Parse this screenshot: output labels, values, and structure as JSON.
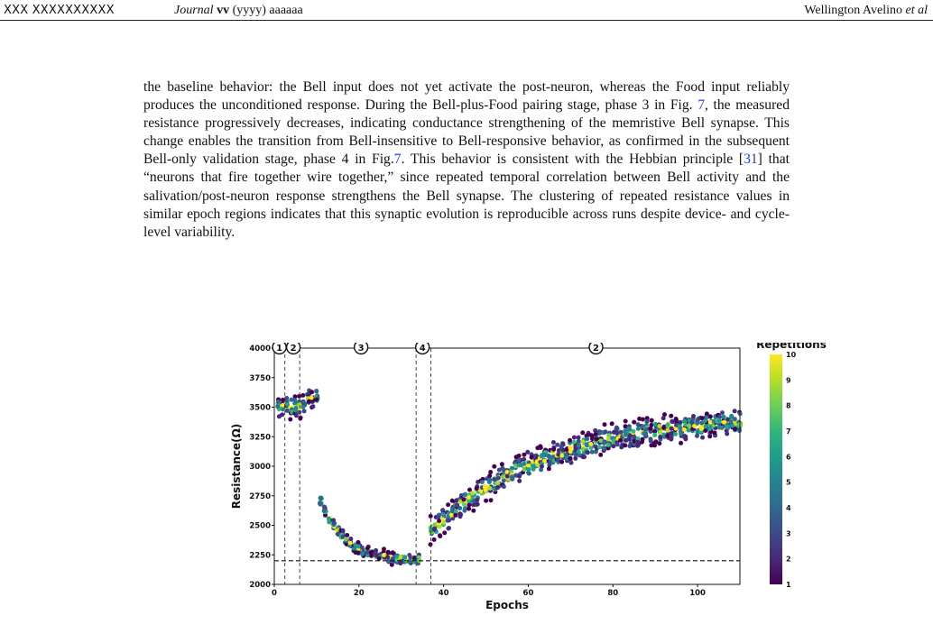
{
  "header": {
    "left_code": "XXX XXXXXXXXXX",
    "journal_name": "Journal",
    "volume": "vv",
    "year": "(yyyy)",
    "pages": "aaaaaa",
    "authors_name": "Wellington Avelino",
    "authors_etal": "et al"
  },
  "paragraph": {
    "s1": "the baseline behavior: the Bell input does not yet activate the post-neuron, whereas the Food input reliably produces the unconditioned response. During the Bell-plus-Food pairing stage, phase 3 in Fig. ",
    "ref1": "7",
    "s2": ", the measured resistance progressively decreases, indicating conductance strengthening of the memristive Bell synapse. This change enables the transition from Bell-insensitive to Bell-responsive behavior, as confirmed in the subsequent Bell-only validation stage, phase 4 in Fig.",
    "ref2": "7",
    "s3": ". This behavior is consistent with the Hebbian principle [",
    "ref3": "31",
    "s4": "] that “neurons that fire together wire together,” since repeated temporal correlation between Bell activity and the salivation/post-neuron response strengthens the Bell synapse. The clustering of repeated resistance values in similar epoch regions indicates that this synaptic evolution is reproducible across runs despite device- and cycle-level variability."
  },
  "chart_data": {
    "type": "scatter",
    "xlabel": "Epochs",
    "ylabel": "Resistance(Ω)",
    "xlim": [
      0,
      110
    ],
    "ylim": [
      2000,
      4000
    ],
    "xticks": [
      "0",
      "20",
      "40",
      "60",
      "80",
      "100"
    ],
    "yticks": [
      "2000",
      "2250",
      "2500",
      "2750",
      "3000",
      "3250",
      "3500",
      "3750",
      "4000"
    ],
    "phase_lines_x": [
      2.5,
      6,
      33.5,
      37
    ],
    "threshold_y": 2200,
    "phase_markers": [
      {
        "label": "1",
        "x": 1.2
      },
      {
        "label": "2",
        "x": 4.5
      },
      {
        "label": "3",
        "x": 20.5
      },
      {
        "label": "4",
        "x": 35
      },
      {
        "label": "2",
        "x": 76
      }
    ],
    "colorbar": {
      "title": "Repetitions",
      "min": 1,
      "max": 10,
      "ticks": [
        "1",
        "2",
        "3",
        "4",
        "5",
        "6",
        "7",
        "8",
        "9",
        "10"
      ]
    },
    "trend_description_segments": [
      {
        "x_from": 1,
        "x_to": 8,
        "y_center": 3500,
        "spread": 240
      },
      {
        "x_from": 8,
        "x_to": 11,
        "y_center": 3580,
        "spread": 150
      },
      {
        "x_from": 10,
        "x_to": 34,
        "y_start": 2800,
        "y_end": 2200
      },
      {
        "x_from": 37,
        "x_to": 110,
        "y_start": 2450,
        "y_end": 3450
      }
    ],
    "grid": false
  }
}
